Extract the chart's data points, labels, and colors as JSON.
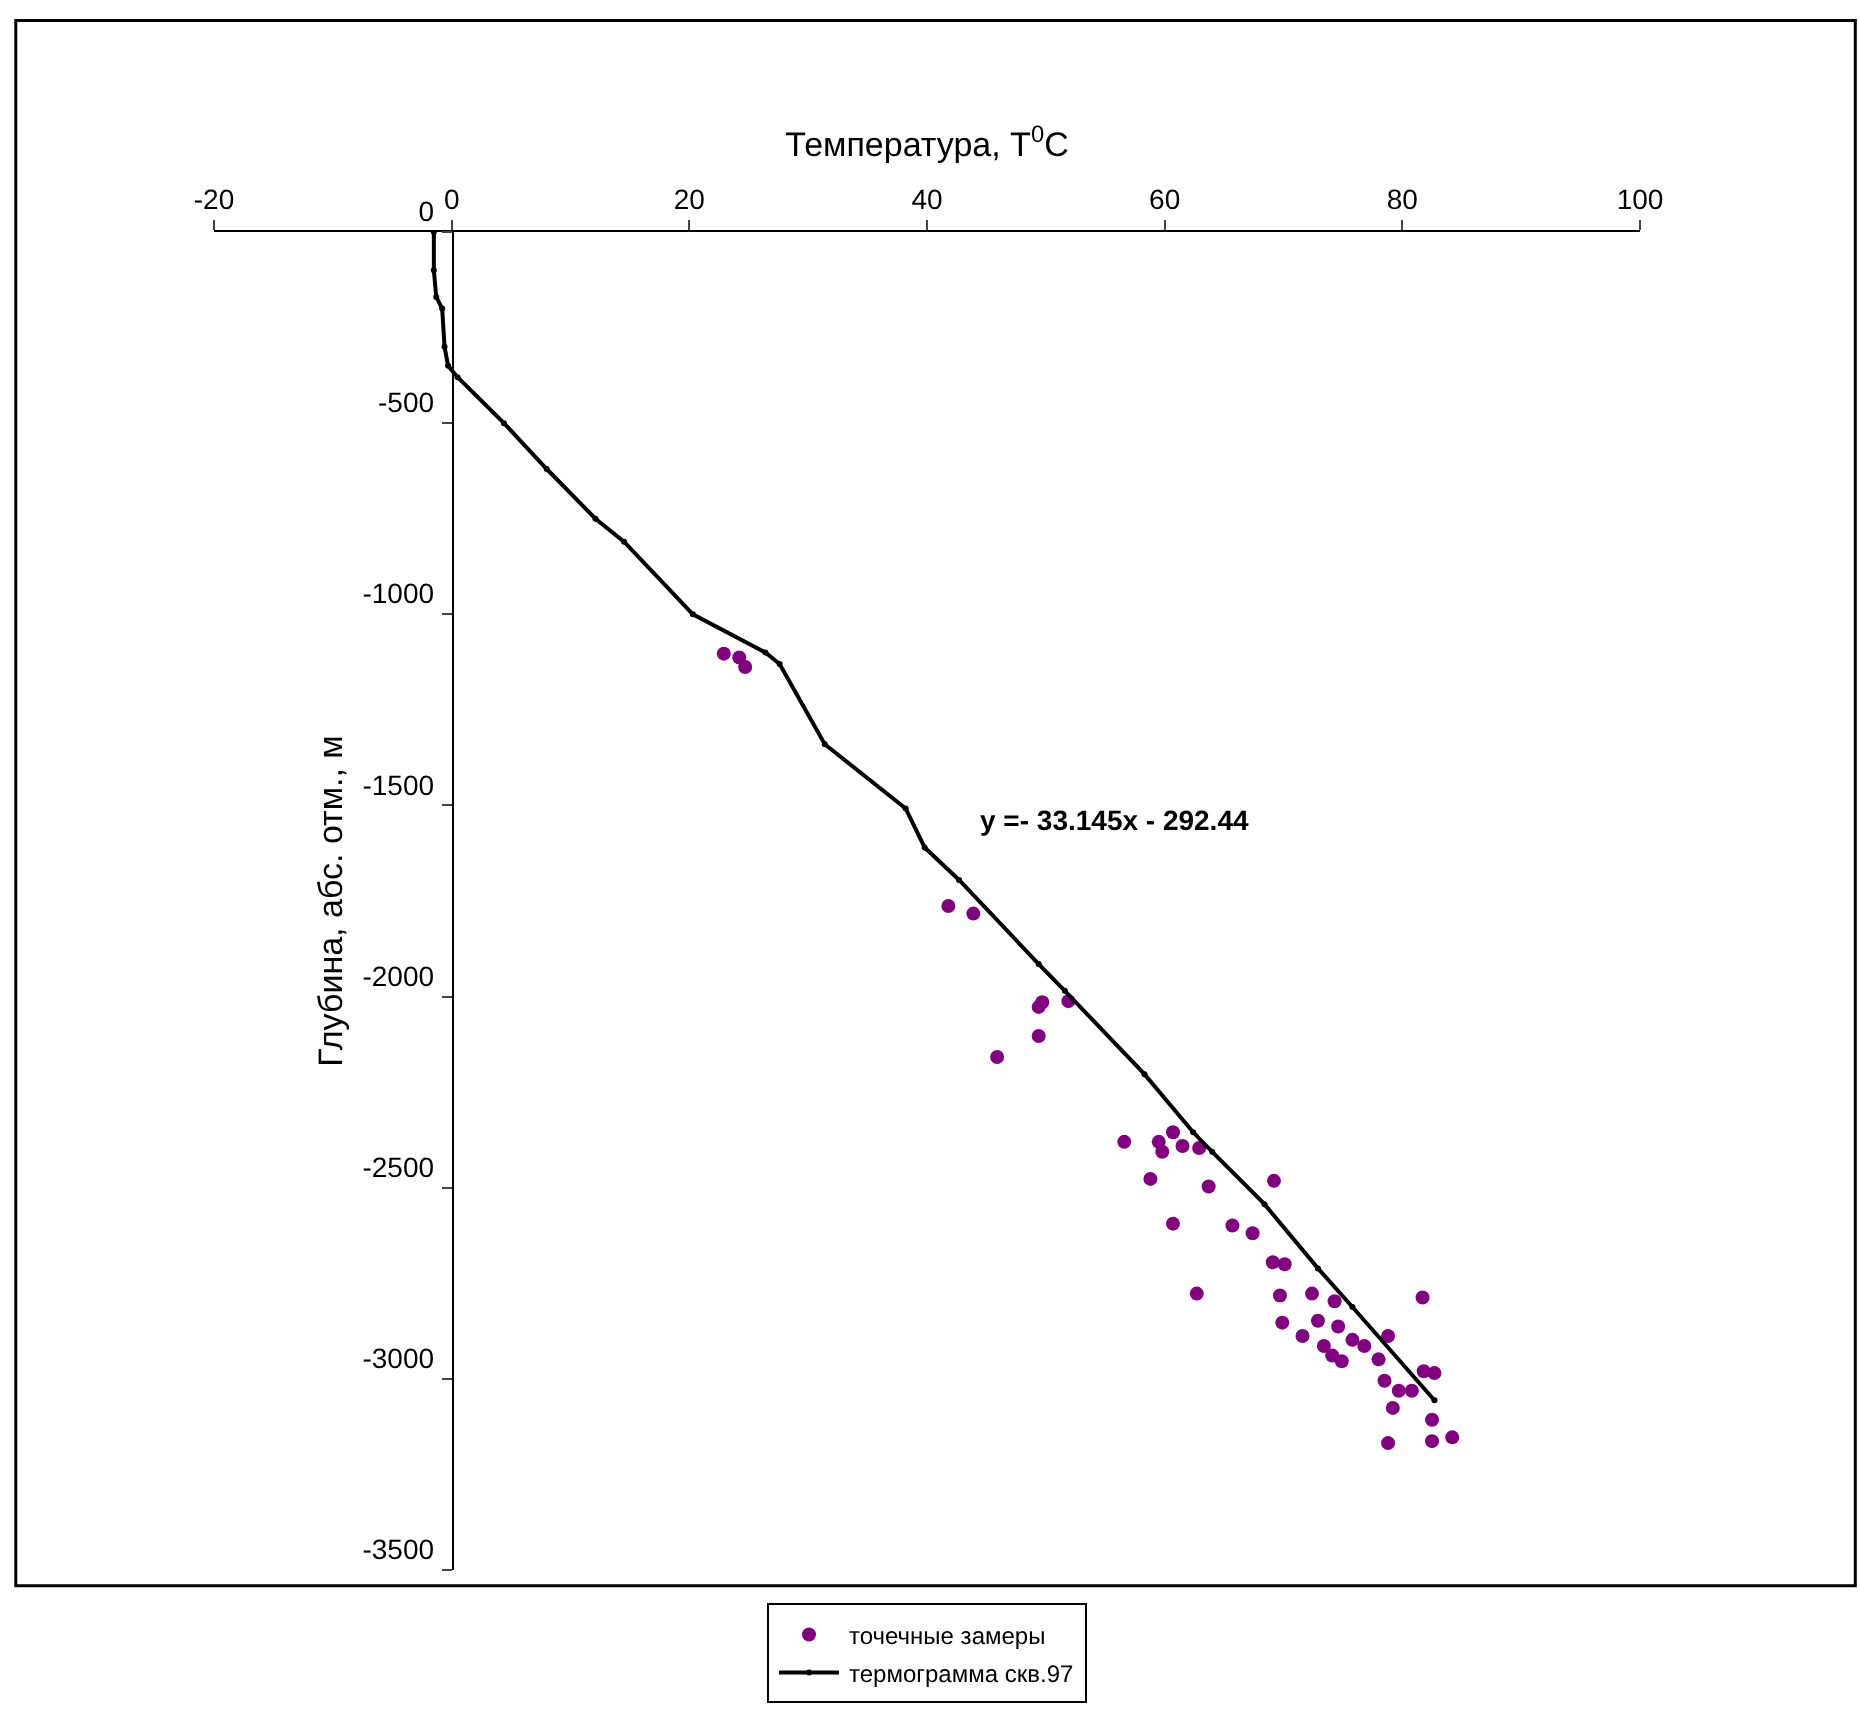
{
  "chart_data": {
    "type": "scatter",
    "xlabel": "Температура, T$^{0}$C",
    "ylabel": "Глубина, абс. отм., м",
    "annotations": [
      "y =- 33.145x - 292.44"
    ],
    "xlim": [
      -20,
      100
    ],
    "xticks": [
      -20,
      0,
      20,
      40,
      60,
      80,
      100
    ],
    "ylim": [
      -3500,
      0
    ],
    "yticks": [
      -3500,
      -3000,
      -2500,
      -2000,
      -1500,
      -1000,
      -500,
      0
    ],
    "legend": "bottom",
    "marker": "circle",
    "series": [
      {
        "name": "точечные замеры",
        "color": "#800080",
        "x": [
          22.9,
          24.2,
          24.7,
          41.8,
          43.9,
          49.4,
          49.4,
          45.9,
          49.7,
          51.9,
          56.6,
          59.5,
          60.7,
          59.8,
          62.9,
          61.5,
          58.8,
          63.7,
          69.2,
          60.7,
          65.7,
          67.4,
          69.1,
          70.1,
          62.7,
          69.7,
          72.4,
          81.7,
          69.9,
          71.6,
          72.9,
          74.6,
          73.4,
          75.8,
          74.1,
          74.9,
          76.8,
          78.0,
          78.8,
          78.5,
          79.7,
          80.8,
          81.8,
          82.7,
          79.2,
          82.5,
          82.5,
          78.8,
          84.2,
          74.3
        ],
        "values": [
          -1103,
          -1113,
          -1138,
          -1763,
          -1783,
          -2027,
          -2103,
          -2158,
          -2015,
          -2012,
          -2380,
          -2380,
          -2355,
          -2406,
          -2396,
          -2391,
          -2477,
          -2497,
          -2482,
          -2594,
          -2599,
          -2619,
          -2695,
          -2700,
          -2777,
          -2782,
          -2777,
          -2787,
          -2853,
          -2888,
          -2848,
          -2863,
          -2914,
          -2898,
          -2939,
          -2954,
          -2914,
          -2949,
          -2888,
          -3005,
          -3031,
          -3031,
          -2980,
          -2985,
          -3076,
          -3107,
          -3163,
          -3168,
          -3153,
          -2797
        ]
      },
      {
        "name": "термограмма скв.97",
        "type": "line",
        "color": "#000000",
        "x": [
          -1.5,
          -1.5,
          -1.3,
          -0.8,
          -0.6,
          -0.3,
          0.5,
          4.4,
          8,
          12.1,
          14.5,
          20.3,
          26.4,
          27.6,
          31.4,
          38.2,
          39.8,
          42.7,
          49.4,
          51.6,
          58.3,
          62.4,
          64,
          68.4,
          72.9,
          75.8,
          82.7
        ],
        "values": [
          0,
          -100,
          -170,
          -200,
          -300,
          -350,
          -380,
          -500,
          -620,
          -750,
          -810,
          -1000,
          -1100,
          -1130,
          -1340,
          -1508,
          -1610,
          -1695,
          -1915,
          -1985,
          -2203,
          -2355,
          -2406,
          -2543,
          -2711,
          -2812,
          -3056
        ]
      }
    ]
  }
}
